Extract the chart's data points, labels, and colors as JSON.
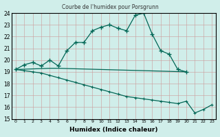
{
  "title": "Courbe de l'humidex pour Porsgrunn",
  "xlabel": "Humidex (Indice chaleur)",
  "bg_color": "#d0eeea",
  "grid_color": "#cc9999",
  "line_color": "#006655",
  "xmin": -0.5,
  "xmax": 23.5,
  "ymin": 15,
  "ymax": 24,
  "line1_x": [
    0,
    1,
    2,
    3,
    4,
    5,
    6,
    7,
    8,
    9,
    10,
    11,
    12,
    13,
    14,
    15,
    16,
    17,
    18,
    19,
    20
  ],
  "line1_y": [
    19.2,
    19.6,
    19.8,
    19.5,
    20.0,
    19.5,
    20.8,
    21.5,
    21.5,
    22.5,
    22.8,
    23.0,
    22.7,
    22.5,
    23.8,
    24.0,
    22.2,
    20.8,
    20.5,
    19.2,
    19.0
  ],
  "line2_x": [
    0,
    4,
    5,
    20
  ],
  "line2_y": [
    19.2,
    19.3,
    19.3,
    19.0
  ],
  "line3_x": [
    0,
    1,
    2,
    3,
    4,
    5,
    6,
    7,
    8,
    9,
    10,
    11,
    12,
    13,
    14,
    15,
    16,
    17,
    18,
    19,
    20,
    21,
    22,
    23
  ],
  "line3_y": [
    19.2,
    19.1,
    19.0,
    18.9,
    18.7,
    18.5,
    18.3,
    18.1,
    17.9,
    17.7,
    17.5,
    17.3,
    17.1,
    16.9,
    16.8,
    16.7,
    16.6,
    16.5,
    16.4,
    16.3,
    16.5,
    15.5,
    15.8,
    16.2
  ]
}
